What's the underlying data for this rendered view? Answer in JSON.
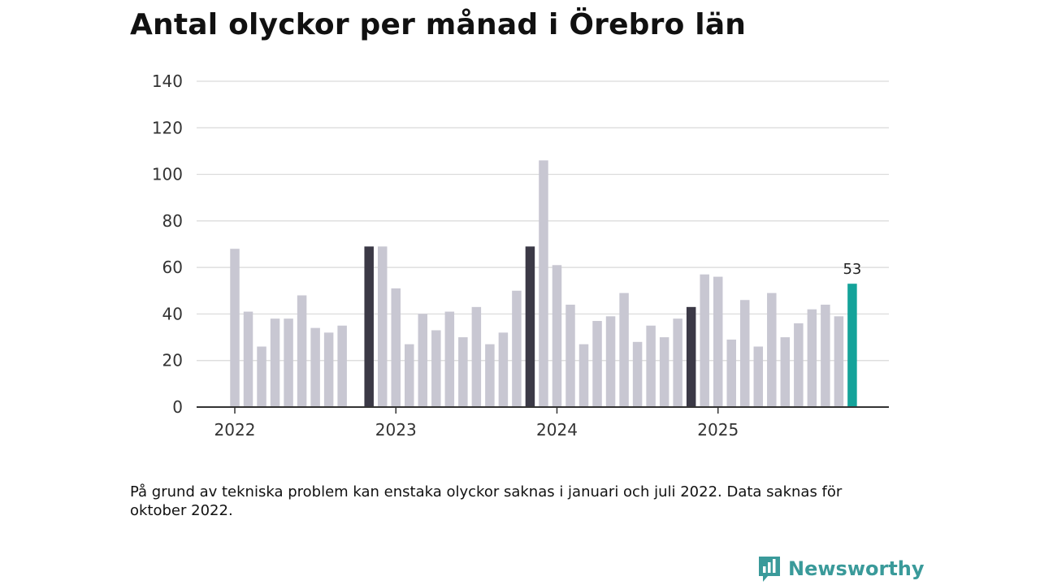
{
  "title": "Antal olyckor per månad i Örebro län",
  "note": "På grund av tekniska problem kan enstaka olyckor saknas i januari och juli 2022. Data saknas för oktober 2022.",
  "brand": {
    "name": "Newsworthy",
    "icon": "newsworthy-logo-icon"
  },
  "colors": {
    "bar": "#c8c7d2",
    "november": "#3b3946",
    "latest": "#14a39a",
    "grid": "#d9d9d9",
    "axis": "#333333"
  },
  "chart_data": {
    "type": "bar",
    "title": "Antal olyckor per månad i Örebro län",
    "xlabel": "",
    "ylabel": "",
    "ylim": [
      0,
      140
    ],
    "yticks": [
      0,
      20,
      40,
      60,
      80,
      100,
      120,
      140
    ],
    "grid": true,
    "categories": [
      "2022-01",
      "2022-02",
      "2022-03",
      "2022-04",
      "2022-05",
      "2022-06",
      "2022-07",
      "2022-08",
      "2022-09",
      "2022-10",
      "2022-11",
      "2022-12",
      "2023-01",
      "2023-02",
      "2023-03",
      "2023-04",
      "2023-05",
      "2023-06",
      "2023-07",
      "2023-08",
      "2023-09",
      "2023-10",
      "2023-11",
      "2023-12",
      "2024-01",
      "2024-02",
      "2024-03",
      "2024-04",
      "2024-05",
      "2024-06",
      "2024-07",
      "2024-08",
      "2024-09",
      "2024-10",
      "2024-11",
      "2024-12",
      "2025-01",
      "2025-02",
      "2025-03",
      "2025-04",
      "2025-05",
      "2025-06",
      "2025-07",
      "2025-08",
      "2025-09",
      "2025-10",
      "2025-11"
    ],
    "values": [
      68,
      41,
      26,
      38,
      38,
      48,
      34,
      32,
      35,
      null,
      69,
      69,
      51,
      27,
      40,
      33,
      41,
      30,
      43,
      27,
      32,
      50,
      69,
      106,
      61,
      44,
      27,
      37,
      39,
      49,
      28,
      35,
      30,
      38,
      43,
      57,
      56,
      29,
      46,
      26,
      49,
      30,
      36,
      42,
      44,
      39,
      53
    ],
    "highlight_november": [
      "2022-11",
      "2023-11",
      "2024-11"
    ],
    "highlight_latest": "2025-11",
    "year_labels": [
      {
        "label": "2022",
        "index": 0
      },
      {
        "label": "2023",
        "index": 12
      },
      {
        "label": "2024",
        "index": 24
      },
      {
        "label": "2025",
        "index": 36
      }
    ],
    "value_label": {
      "index": 46,
      "text": "53"
    }
  }
}
